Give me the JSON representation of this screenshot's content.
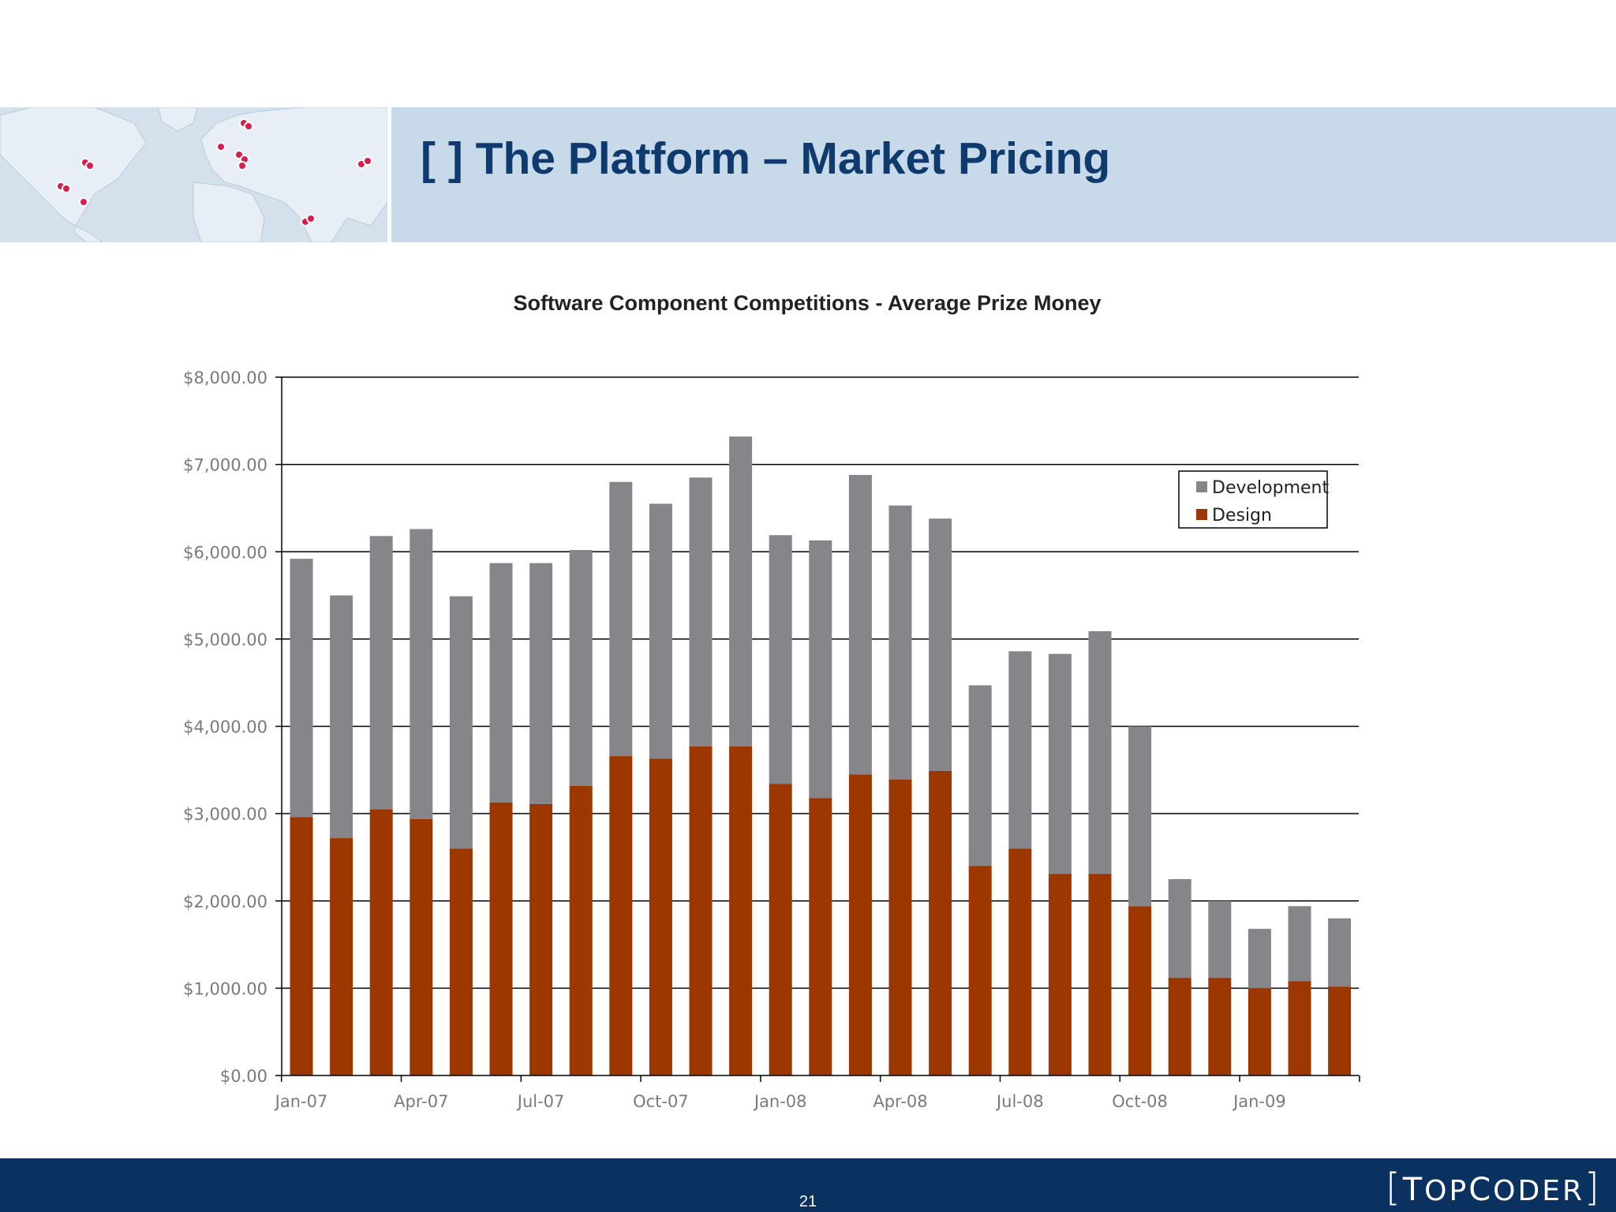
{
  "header": {
    "title": "[ ] The Platform – Market Pricing"
  },
  "footer": {
    "page_number": "21",
    "logo_text": "[TOPCODER]"
  },
  "colors": {
    "header_band": "#c8daea",
    "title": "#0f3a6e",
    "footer": "#0a3160",
    "development": "#868589",
    "design": "#9c3700"
  },
  "chart_data": {
    "type": "bar",
    "stacked": true,
    "title": "Software Component Competitions - Average Prize Money",
    "xlabel": "",
    "ylabel": "",
    "ylim": [
      0,
      8000
    ],
    "yticks": [
      "$0.00",
      "$1,000.00",
      "$2,000.00",
      "$3,000.00",
      "$4,000.00",
      "$5,000.00",
      "$6,000.00",
      "$7,000.00",
      "$8,000.00"
    ],
    "xtick_labels": [
      {
        "index": 0,
        "label": "Jan-07"
      },
      {
        "index": 3,
        "label": "Apr-07"
      },
      {
        "index": 6,
        "label": "Jul-07"
      },
      {
        "index": 9,
        "label": "Oct-07"
      },
      {
        "index": 12,
        "label": "Jan-08"
      },
      {
        "index": 15,
        "label": "Apr-08"
      },
      {
        "index": 18,
        "label": "Jul-08"
      },
      {
        "index": 21,
        "label": "Oct-08"
      },
      {
        "index": 24,
        "label": "Jan-09"
      }
    ],
    "categories": [
      "Jan-07",
      "Feb-07",
      "Mar-07",
      "Apr-07",
      "May-07",
      "Jun-07",
      "Jul-07",
      "Aug-07",
      "Sep-07",
      "Oct-07",
      "Nov-07",
      "Dec-07",
      "Jan-08",
      "Feb-08",
      "Mar-08",
      "Apr-08",
      "May-08",
      "Jun-08",
      "Jul-08",
      "Aug-08",
      "Sep-08",
      "Oct-08",
      "Nov-08",
      "Dec-08",
      "Jan-09",
      "Feb-09",
      "Mar-09"
    ],
    "legend_position": "top-right",
    "series": [
      {
        "name": "Design",
        "color": "#9c3700",
        "values": [
          2960,
          2720,
          3050,
          2940,
          2600,
          3130,
          3110,
          3320,
          3660,
          3630,
          3770,
          3770,
          3340,
          3180,
          3450,
          3390,
          3490,
          2400,
          2600,
          2310,
          2310,
          1940,
          1120,
          1120,
          1000,
          1080,
          1020
        ]
      },
      {
        "name": "Development",
        "color": "#868589",
        "values": [
          2960,
          2780,
          3130,
          3320,
          2890,
          2740,
          2760,
          2700,
          3140,
          2920,
          3080,
          3550,
          2850,
          2950,
          3430,
          3140,
          2890,
          2070,
          2260,
          2520,
          2780,
          2060,
          1130,
          880,
          680,
          860,
          780
        ]
      }
    ]
  }
}
